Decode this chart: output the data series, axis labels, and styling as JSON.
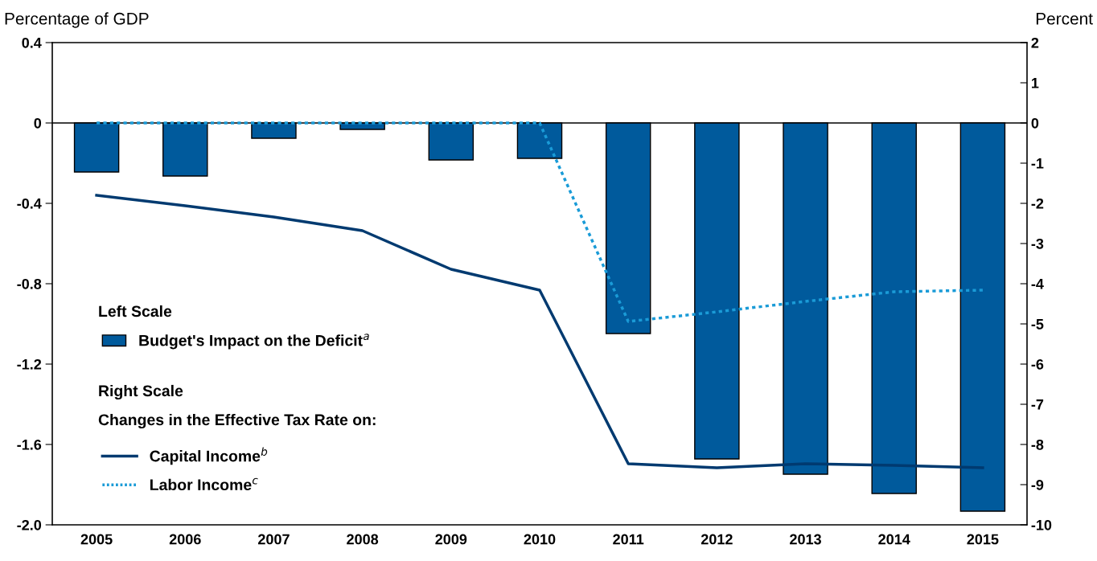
{
  "chart_data": {
    "type": "bar",
    "ylabel": "Percentage of GDP",
    "y2label": "Percent",
    "categories": [
      "2005",
      "2006",
      "2007",
      "2008",
      "2009",
      "2010",
      "2011",
      "2012",
      "2013",
      "2014",
      "2015"
    ],
    "series": [
      {
        "name": "Budget's Impact on the Deficit$^{a}$",
        "color": "#005a9c",
        "values": [
          -0.244,
          -0.264,
          -0.076,
          -0.032,
          -0.184,
          -0.176,
          -1.048,
          -1.672,
          -1.748,
          -1.844,
          -1.932
        ]
      },
      {
        "name": "Capital Income$^{b}$",
        "type": "line",
        "axis": "y2",
        "color": "#003a70",
        "line_style": "solid",
        "values": [
          -1.8,
          -2.06,
          -2.34,
          -2.68,
          -3.64,
          -4.16,
          -8.48,
          -8.58,
          -8.48,
          -8.52,
          -8.58
        ]
      },
      {
        "name": "Labor Income$^{c}$",
        "type": "line",
        "axis": "y2",
        "color": "#1a9bd7",
        "line_style": "dashed",
        "values": [
          0,
          0,
          0,
          0,
          0,
          0,
          -4.94,
          -4.7,
          -4.44,
          -4.2,
          -4.16
        ]
      }
    ],
    "ylim": [
      -2.0,
      0.4
    ],
    "yticks": [
      {
        "value": -2.0,
        "label": "-2.0"
      },
      {
        "value": -1.6,
        "label": "-1.6"
      },
      {
        "value": -1.2,
        "label": "-1.2"
      },
      {
        "value": -0.8,
        "label": "-0.8"
      },
      {
        "value": -0.4,
        "label": "-0.4"
      },
      0,
      0.4
    ],
    "y2lim": [
      -10,
      2
    ],
    "y2ticks": [
      -10,
      -9,
      -8,
      -7,
      -6,
      -5,
      -4,
      -3,
      -2,
      -1,
      0,
      1,
      2
    ],
    "annotations": [
      "Left Scale",
      "Right Scale",
      "Changes in the Effective Tax Rate on:"
    ],
    "ref_lines": [
      {
        "axis": "y",
        "value": 0,
        "color": "#000000"
      }
    ],
    "legend": "bottom left",
    "grid": false,
    "marker": "none"
  }
}
